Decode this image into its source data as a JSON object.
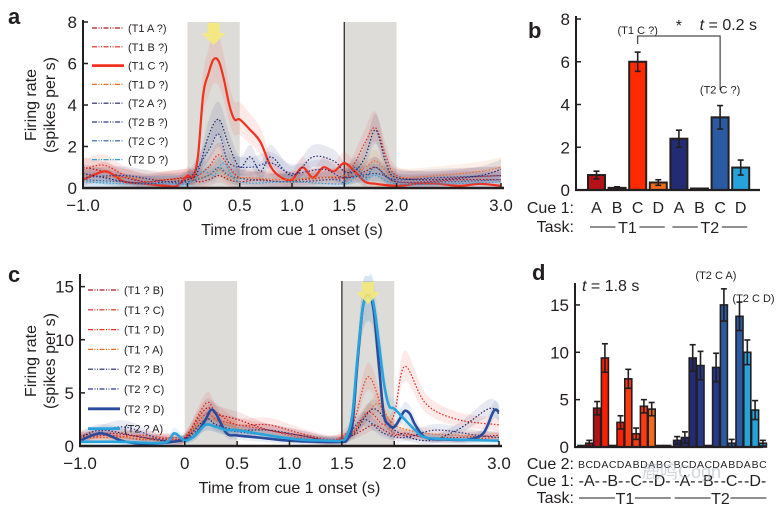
{
  "chart_data": [
    {
      "panel": "a",
      "type": "line",
      "xlabel": "Time from cue 1 onset (s)",
      "ylabel": [
        "Firing rate",
        "(spikes per s)"
      ],
      "xlim": [
        -1.0,
        3.0
      ],
      "ylim": [
        0,
        8
      ],
      "xticks": [
        -1.0,
        0,
        0.5,
        1.0,
        1.5,
        2.0,
        3.0
      ],
      "xtick_labels": [
        "−1.0",
        "0",
        "0.5",
        "1.0",
        "1.5",
        "2.0",
        "3.0"
      ],
      "yticks": [
        0,
        2,
        4,
        6,
        8
      ],
      "shaded_epochs": [
        [
          0,
          0.5
        ],
        [
          1.5,
          2.0
        ]
      ],
      "marker_line_at": 1.5,
      "arrow_at": 0.25,
      "legend_position": "top-left",
      "series": [
        {
          "name": "(T1 A ?)",
          "color": "#b0141b",
          "style": "dotted",
          "x": [
            -1,
            -0.8,
            -0.6,
            -0.4,
            -0.2,
            0,
            0.1,
            0.2,
            0.3,
            0.4,
            0.5,
            0.7,
            0.9,
            1.1,
            1.3,
            1.5,
            1.6,
            1.7,
            1.8,
            1.9,
            2.0,
            2.3,
            2.6,
            3.0
          ],
          "y": [
            1.0,
            0.8,
            0.5,
            0.3,
            0.4,
            0.5,
            0.3,
            0.4,
            0.6,
            0.4,
            0.3,
            0.4,
            0.3,
            0.4,
            0.5,
            0.5,
            0.6,
            0.8,
            1.0,
            0.6,
            0.3,
            0.3,
            0.4,
            0.4
          ]
        },
        {
          "name": "(T1 B ?)",
          "color": "#e2231a",
          "style": "dotted",
          "x": [
            -1,
            -0.8,
            -0.6,
            -0.4,
            -0.2,
            0,
            0.1,
            0.2,
            0.3,
            0.4,
            0.5,
            0.7,
            0.9,
            1.1,
            1.3,
            1.5,
            1.6,
            1.7,
            1.8,
            1.9,
            2.0,
            2.3,
            2.6,
            3.0
          ],
          "y": [
            0.9,
            1.1,
            0.6,
            0.3,
            0.4,
            0.5,
            0.6,
            1.0,
            1.6,
            1.0,
            0.5,
            0.4,
            0.3,
            0.3,
            0.4,
            0.5,
            1.2,
            2.2,
            2.9,
            1.5,
            0.6,
            0.4,
            0.5,
            0.6
          ]
        },
        {
          "name": "(T1 C ?)",
          "color": "#f2311f",
          "style": "solid",
          "x": [
            -1,
            -0.8,
            -0.7,
            -0.6,
            -0.4,
            -0.2,
            -0.1,
            0,
            0.05,
            0.1,
            0.15,
            0.2,
            0.25,
            0.3,
            0.35,
            0.4,
            0.45,
            0.5,
            0.6,
            0.7,
            0.8,
            0.9,
            1.0,
            1.1,
            1.2,
            1.3,
            1.4,
            1.5,
            1.6,
            1.7,
            1.8,
            2.0,
            2.2,
            2.4,
            2.6,
            2.8,
            3.0
          ],
          "y": [
            0.4,
            0.8,
            0.6,
            0.3,
            0.2,
            0.1,
            0.1,
            0.6,
            0.5,
            1.5,
            4.5,
            5.5,
            6.2,
            6.1,
            5.2,
            4.0,
            3.3,
            3.3,
            2.8,
            2.2,
            1.0,
            0.5,
            0.4,
            1.0,
            0.5,
            1.0,
            0.8,
            1.2,
            0.8,
            0.3,
            0.2,
            0.1,
            0.2,
            0.2,
            0.1,
            0.2,
            0.1
          ]
        },
        {
          "name": "(T1 D ?)",
          "color": "#f06f1e",
          "style": "dotted",
          "x": [
            -1,
            -0.6,
            -0.2,
            0,
            0.2,
            0.3,
            0.4,
            0.6,
            0.9,
            1.2,
            1.5,
            1.7,
            1.8,
            1.9,
            2.0,
            2.4,
            2.8,
            3.0
          ],
          "y": [
            0.6,
            0.5,
            0.4,
            0.4,
            0.6,
            0.9,
            0.5,
            0.5,
            0.4,
            0.5,
            0.6,
            1.0,
            1.3,
            0.8,
            0.5,
            0.6,
            0.8,
            1.0
          ]
        },
        {
          "name": "(T2 A ?)",
          "color": "#1f2568",
          "style": "dotted",
          "x": [
            -1,
            -0.8,
            -0.6,
            -0.4,
            -0.2,
            0,
            0.1,
            0.2,
            0.3,
            0.4,
            0.5,
            0.6,
            0.7,
            0.8,
            1.0,
            1.2,
            1.4,
            1.5,
            1.6,
            1.7,
            1.8,
            1.9,
            2.0,
            2.4,
            2.8,
            3.0
          ],
          "y": [
            0.7,
            0.5,
            0.3,
            0.2,
            0.3,
            0.4,
            0.8,
            2.5,
            3.3,
            2.0,
            1.0,
            1.5,
            0.8,
            1.5,
            0.6,
            1.5,
            1.3,
            0.8,
            0.8,
            1.5,
            2.8,
            1.2,
            0.5,
            0.4,
            0.6,
            0.9
          ]
        },
        {
          "name": "(T2 B ?)",
          "color": "#2b3a8f",
          "style": "dotted",
          "x": [
            -1,
            -0.6,
            -0.2,
            0,
            0.2,
            0.3,
            0.4,
            0.6,
            0.8,
            1.0,
            1.3,
            1.5,
            1.8,
            2.0,
            2.4,
            3.0
          ],
          "y": [
            0.5,
            0.6,
            0.3,
            0.4,
            1.8,
            2.6,
            1.2,
            1.0,
            1.2,
            0.7,
            0.9,
            0.5,
            0.7,
            0.4,
            0.5,
            0.6
          ]
        },
        {
          "name": "(T2 C ?)",
          "color": "#2b5ea7",
          "style": "dotted",
          "x": [
            -1,
            -0.6,
            -0.2,
            0,
            0.2,
            0.3,
            0.4,
            0.6,
            1.0,
            1.4,
            1.5,
            1.6,
            1.7,
            1.8,
            2.0,
            2.5,
            3.0
          ],
          "y": [
            0.4,
            0.3,
            0.2,
            0.3,
            0.6,
            1.0,
            0.6,
            0.4,
            0.3,
            0.4,
            0.3,
            1.0,
            0.5,
            1.0,
            0.3,
            0.3,
            0.4
          ]
        },
        {
          "name": "(T2 D ?)",
          "color": "#29a3dc",
          "style": "dotted",
          "x": [
            -1,
            -0.6,
            -0.2,
            0,
            0.15,
            0.25,
            0.35,
            0.5,
            1.0,
            1.5,
            1.6,
            1.7,
            1.8,
            2.0,
            2.5,
            3.0
          ],
          "y": [
            0.3,
            0.2,
            0.2,
            0.2,
            0.8,
            0.6,
            1.2,
            0.3,
            0.3,
            0.2,
            0.6,
            0.4,
            0.6,
            0.2,
            0.2,
            0.3
          ]
        }
      ]
    },
    {
      "panel": "b",
      "type": "bar",
      "title": "t = 0.2 s",
      "ylabel": "",
      "ylim": [
        0,
        8
      ],
      "yticks": [
        0,
        2,
        4,
        6,
        8
      ],
      "row_labels": {
        "cue1": "Cue 1:",
        "task": "Task:"
      },
      "categories": [
        "A",
        "B",
        "C",
        "D",
        "A",
        "B",
        "C",
        "D"
      ],
      "tasks": [
        "T1",
        "T2"
      ],
      "values": [
        0.7,
        0.1,
        6.0,
        0.35,
        2.4,
        0.02,
        3.4,
        1.05
      ],
      "errors": [
        0.18,
        0.05,
        0.45,
        0.13,
        0.4,
        0.0,
        0.55,
        0.35
      ],
      "colors": [
        "#b51218",
        "#b51218",
        "#ff2a00",
        "#f26a1b",
        "#232b73",
        "#232b73",
        "#2a5aa2",
        "#27a3db"
      ],
      "annotations": [
        {
          "text": "(T1 C ?)",
          "bar": 2
        },
        {
          "text": "(T2 C ?)",
          "bar": 6
        }
      ],
      "significance": {
        "text": "*",
        "between": [
          2,
          6
        ]
      }
    },
    {
      "panel": "c",
      "type": "line",
      "xlabel": "Time from cue 1 onset (s)",
      "ylabel": [
        "Firing rate",
        "(spikes per s)"
      ],
      "xlim": [
        -1.0,
        3.0
      ],
      "ylim": [
        0,
        16
      ],
      "xticks": [
        -1.0,
        0,
        0.5,
        1.0,
        1.5,
        2.0,
        3.0
      ],
      "xtick_labels": [
        "−1.0",
        "0",
        "0.5",
        "1.0",
        "1.5",
        "2.0",
        "3.0"
      ],
      "yticks": [
        0,
        5,
        10,
        15
      ],
      "shaded_epochs": [
        [
          0,
          0.5
        ],
        [
          1.5,
          2.0
        ]
      ],
      "marker_line_at": 1.5,
      "arrow_at": 1.75,
      "legend_position": "top-left",
      "series": [
        {
          "name": "(T1 ? B)",
          "color": "#b0141b",
          "style": "dotted",
          "x": [
            -1,
            -0.7,
            -0.4,
            -0.1,
            0,
            0.2,
            0.3,
            0.5,
            0.8,
            1.1,
            1.4,
            1.6,
            1.7,
            1.8,
            1.9,
            2.0,
            2.1,
            2.3,
            2.6,
            3.0
          ],
          "y": [
            1.0,
            1.2,
            0.8,
            0.6,
            0.8,
            3.5,
            3.0,
            2.5,
            1.5,
            1.0,
            0.5,
            1.0,
            1.5,
            2.0,
            1.5,
            1.0,
            1.2,
            0.8,
            0.8,
            1.0
          ]
        },
        {
          "name": "(T1 ? C)",
          "color": "#e2231a",
          "style": "dotted",
          "x": [
            -1,
            -0.7,
            -0.4,
            -0.1,
            0,
            0.2,
            0.3,
            0.5,
            0.8,
            1.1,
            1.4,
            1.6,
            1.75,
            1.9,
            2.0,
            2.1,
            2.3,
            2.6,
            3.0
          ],
          "y": [
            0.8,
            1.0,
            0.6,
            0.8,
            0.6,
            4.0,
            3.2,
            2.0,
            2.0,
            1.2,
            0.6,
            1.2,
            3.2,
            2.0,
            3.0,
            7.5,
            4.0,
            2.5,
            2.0
          ]
        },
        {
          "name": "(T1 ? D)",
          "color": "#f2311f",
          "style": "dotted",
          "x": [
            -1,
            -0.7,
            -0.4,
            -0.1,
            0,
            0.2,
            0.3,
            0.5,
            0.8,
            1.1,
            1.4,
            1.6,
            1.75,
            1.9,
            2.0,
            2.2,
            2.5,
            3.0
          ],
          "y": [
            0.9,
            0.8,
            1.0,
            0.6,
            0.7,
            3.0,
            2.5,
            2.0,
            1.5,
            0.8,
            0.5,
            2.0,
            6.5,
            3.0,
            1.2,
            1.0,
            0.6,
            0.8
          ]
        },
        {
          "name": "(T1 ? A)",
          "color": "#f06f1e",
          "style": "dotted",
          "x": [
            -1,
            -0.6,
            -0.2,
            0,
            0.2,
            0.4,
            0.8,
            1.2,
            1.5,
            1.7,
            1.85,
            2.0,
            2.3,
            2.7,
            3.0
          ],
          "y": [
            0.7,
            0.8,
            0.5,
            0.6,
            2.5,
            2.0,
            1.0,
            0.6,
            0.5,
            2.5,
            4.0,
            2.0,
            1.2,
            1.0,
            0.8
          ]
        },
        {
          "name": "(T2 ? B)",
          "color": "#1f2568",
          "style": "dotted",
          "x": [
            -1,
            -0.8,
            -0.5,
            -0.2,
            0,
            0.2,
            0.3,
            0.5,
            0.8,
            1.1,
            1.4,
            1.6,
            1.8,
            2.0,
            2.3,
            2.6,
            2.9,
            3.0
          ],
          "y": [
            0.8,
            1.5,
            1.0,
            0.5,
            0.7,
            2.5,
            2.0,
            1.5,
            1.5,
            1.0,
            0.5,
            1.0,
            3.5,
            1.5,
            0.5,
            1.5,
            3.5,
            3.0
          ]
        },
        {
          "name": "(T2 ? C)",
          "color": "#2b3a8f",
          "style": "dotted",
          "x": [
            -1,
            -0.6,
            -0.2,
            0,
            0.2,
            0.4,
            0.8,
            1.2,
            1.5,
            1.7,
            1.9,
            2.1,
            2.4,
            2.8,
            3.0
          ],
          "y": [
            0.6,
            1.8,
            0.5,
            0.6,
            2.0,
            1.5,
            1.0,
            0.6,
            0.5,
            2.5,
            1.2,
            0.8,
            1.5,
            1.0,
            0.8
          ]
        },
        {
          "name": "(T2 ? D)",
          "color": "#2a4b9b",
          "style": "solid-thick",
          "x": [
            -1,
            -0.8,
            -0.6,
            -0.4,
            -0.2,
            0,
            0.1,
            0.2,
            0.25,
            0.3,
            0.4,
            0.5,
            0.7,
            1.0,
            1.3,
            1.5,
            1.55,
            1.6,
            1.65,
            1.7,
            1.75,
            1.8,
            1.85,
            1.9,
            1.95,
            2.0,
            2.05,
            2.1,
            2.15,
            2.2,
            2.3,
            2.5,
            2.7,
            2.85,
            2.95,
            3.0
          ],
          "y": [
            0.5,
            1.2,
            0.5,
            0.2,
            0.3,
            0.6,
            1.0,
            2.5,
            3.4,
            3.0,
            1.2,
            1.0,
            0.8,
            0.5,
            0.4,
            0.4,
            0.6,
            2.0,
            8.0,
            13.0,
            14.2,
            13.0,
            8.0,
            3.0,
            2.0,
            1.8,
            2.5,
            3.3,
            3.0,
            2.0,
            0.8,
            0.6,
            0.6,
            1.2,
            3.3,
            3.2
          ]
        },
        {
          "name": "(T2 ? A)",
          "color": "#29a3dc",
          "style": "solid-thick",
          "x": [
            -1,
            -0.6,
            -0.2,
            -0.1,
            0,
            0.1,
            0.2,
            0.3,
            0.4,
            0.5,
            0.8,
            1.1,
            1.4,
            1.5,
            1.55,
            1.6,
            1.65,
            1.7,
            1.75,
            1.8,
            1.85,
            1.9,
            1.95,
            2.0,
            2.1,
            2.2,
            2.3,
            2.6,
            3.0
          ],
          "y": [
            0.4,
            0.4,
            0.3,
            1.2,
            0.5,
            1.0,
            2.0,
            1.8,
            1.5,
            1.5,
            1.0,
            0.6,
            0.5,
            0.5,
            1.0,
            3.0,
            8.5,
            13.0,
            14.0,
            13.5,
            10.0,
            6.0,
            3.8,
            3.5,
            2.5,
            1.5,
            0.8,
            0.6,
            0.5
          ]
        }
      ]
    },
    {
      "panel": "d",
      "type": "bar",
      "title": "t = 1.8 s",
      "ylim": [
        0,
        17
      ],
      "yticks": [
        0,
        5,
        10,
        15
      ],
      "row_labels": {
        "cue2": "Cue 2:",
        "cue1": "Cue 1:",
        "task": "Task:"
      },
      "cue2_labels": [
        "B",
        "C",
        "D",
        "A",
        "C",
        "D",
        "A",
        "B",
        "D",
        "A",
        "B",
        "C",
        "B",
        "C",
        "D",
        "A",
        "C",
        "D",
        "A",
        "B",
        "D",
        "A",
        "B",
        "C"
      ],
      "cue1_groups": [
        "-A-",
        "-B-",
        "-C-",
        "-D-",
        "-A-",
        "-B-",
        "-C-",
        "-D-"
      ],
      "tasks": [
        "T1",
        "T2"
      ],
      "values": [
        0.05,
        0.4,
        4.1,
        9.4,
        0.05,
        2.6,
        7.2,
        1.4,
        4.3,
        4.0,
        0.05,
        0.05,
        0.7,
        1.0,
        9.4,
        8.6,
        0.05,
        8.4,
        15.0,
        0.4,
        13.8,
        10.0,
        3.9,
        0.4
      ],
      "errors": [
        0.0,
        0.3,
        0.7,
        1.5,
        0.0,
        0.7,
        1.0,
        0.6,
        0.7,
        0.7,
        0.0,
        0.0,
        0.4,
        0.6,
        1.4,
        1.5,
        0.0,
        1.5,
        1.7,
        0.4,
        1.5,
        1.3,
        1.0,
        0.3
      ],
      "colors": [
        "#b51218",
        "#b51218",
        "#b51218",
        "#ff1e00",
        "#ff1e00",
        "#ff1e00",
        "#ff3a10",
        "#ff3a10",
        "#ff3a10",
        "#f26a1b",
        "#f26a1b",
        "#f26a1b",
        "#232b73",
        "#232b73",
        "#232b73",
        "#26388a",
        "#26388a",
        "#26388a",
        "#2a5aa2",
        "#2a5aa2",
        "#2a5aa2",
        "#27a3db",
        "#27a3db",
        "#27a3db"
      ],
      "annotations": [
        {
          "text": "(T2 C A)",
          "bar": 18
        },
        {
          "text": "(T2 C D)",
          "bar": 20
        }
      ]
    }
  ],
  "panel_labels": [
    "a",
    "b",
    "c",
    "d"
  ],
  "watermark": "鹿鸣Cogn"
}
